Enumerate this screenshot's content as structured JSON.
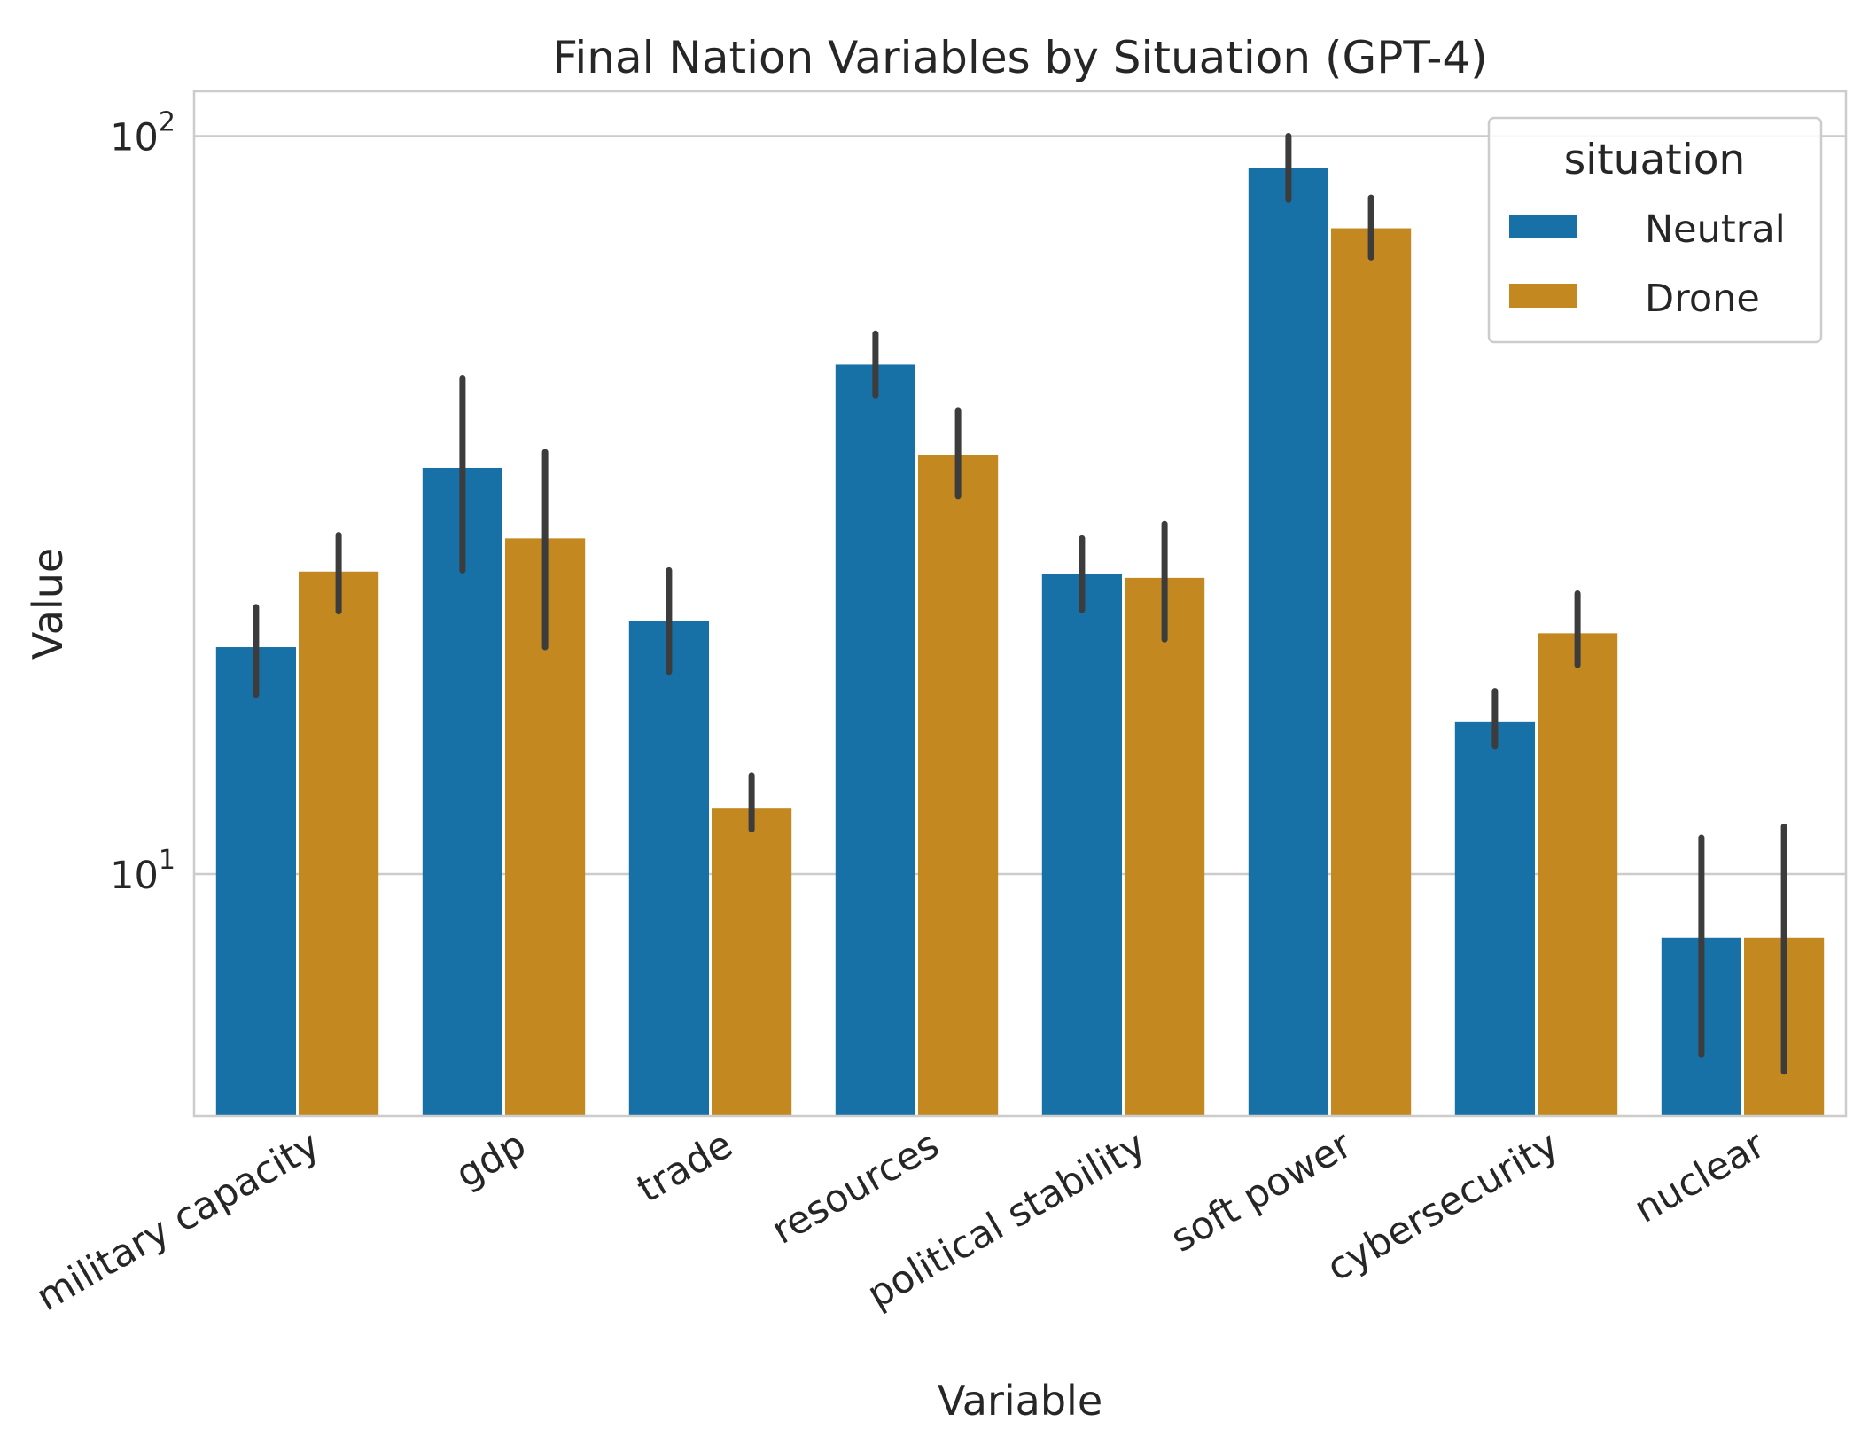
{
  "chart_data": {
    "type": "bar",
    "title": "Final Nation Variables by Situation (GPT-4)",
    "xlabel": "Variable",
    "ylabel": "Value",
    "yscale": "log",
    "ylim": [
      4.7,
      115
    ],
    "yticks": [
      {
        "value": 10,
        "base": "10",
        "exp": "1"
      },
      {
        "value": 100,
        "base": "10",
        "exp": "2"
      }
    ],
    "grid": "horizontal",
    "categories": [
      "military capacity",
      "gdp",
      "trade",
      "resources",
      "political stability",
      "soft power",
      "cybersecurity",
      "nuclear"
    ],
    "series": [
      {
        "name": "Neutral",
        "color": "#1770a6",
        "values": [
          20.3,
          35.5,
          22.0,
          49.0,
          25.5,
          90.5,
          16.1,
          8.2
        ],
        "ci_low": [
          17.5,
          25.8,
          18.8,
          44.5,
          22.8,
          82.0,
          14.9,
          5.7
        ],
        "ci_high": [
          23.0,
          47.0,
          25.8,
          54.0,
          28.5,
          100.0,
          17.7,
          11.2
        ]
      },
      {
        "name": "Drone",
        "color": "#c38820",
        "values": [
          25.7,
          28.5,
          12.3,
          37.0,
          25.2,
          75.0,
          21.2,
          8.2
        ],
        "ci_low": [
          22.7,
          20.3,
          11.5,
          32.5,
          20.8,
          68.5,
          19.2,
          5.4
        ],
        "ci_high": [
          28.8,
          37.3,
          13.6,
          42.5,
          29.8,
          82.5,
          24.0,
          11.6
        ]
      }
    ],
    "legend": {
      "title": "situation",
      "position": "top-right"
    }
  }
}
